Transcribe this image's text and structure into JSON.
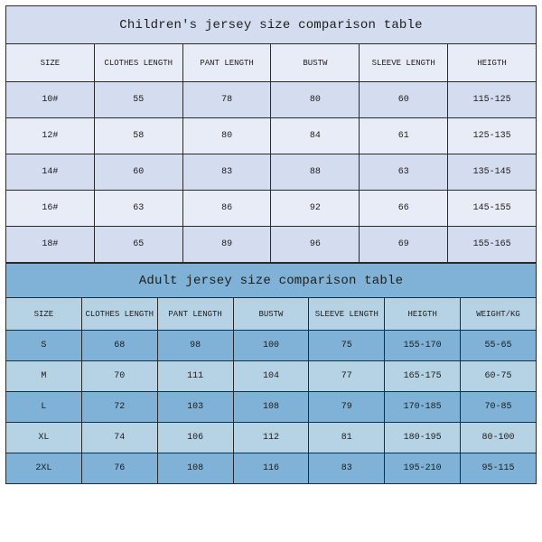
{
  "children": {
    "title": "Children's jersey size comparison table",
    "type": "table",
    "colors": {
      "title_bg": "#d4ddef",
      "header_bg": "#e8ecf6",
      "odd_row_bg": "#d4ddef",
      "even_row_bg": "#e8ecf6",
      "border": "#2a2a2a",
      "text": "#1c1c1c"
    },
    "title_fontsize": 14,
    "header_fontsize": 9,
    "cell_fontsize": 10,
    "font_family": "Courier New, monospace",
    "columns": [
      "SIZE",
      "CLOTHES LENGTH",
      "PANT LENGTH",
      "BUSTW",
      "SLEEVE LENGTH",
      "HEIGTH"
    ],
    "column_widths_pct": [
      12,
      18,
      16,
      14,
      18,
      22
    ],
    "rows": [
      [
        "10#",
        "55",
        "78",
        "80",
        "60",
        "115-125"
      ],
      [
        "12#",
        "58",
        "80",
        "84",
        "61",
        "125-135"
      ],
      [
        "14#",
        "60",
        "83",
        "88",
        "63",
        "135-145"
      ],
      [
        "16#",
        "63",
        "86",
        "92",
        "66",
        "145-155"
      ],
      [
        "18#",
        "65",
        "89",
        "96",
        "69",
        "155-165"
      ]
    ]
  },
  "adult": {
    "title": "Adult jersey size comparison table",
    "type": "table",
    "colors": {
      "title_bg": "#7fb2d6",
      "header_bg": "#b6d3e6",
      "odd_row_bg": "#7fb2d6",
      "even_row_bg": "#b6d3e6",
      "border": "#2a2a2a",
      "text": "#1c1c1c"
    },
    "title_fontsize": 14,
    "header_fontsize": 9,
    "cell_fontsize": 10,
    "font_family": "Courier New, monospace",
    "columns": [
      "SIZE",
      "CLOTHES LENGTH",
      "PANT LENGTH",
      "BUSTW",
      "SLEEVE LENGTH",
      "HEIGTH",
      "WEIGHT/KG"
    ],
    "column_widths_pct": [
      12,
      18,
      16,
      12,
      17,
      12,
      13
    ],
    "rows": [
      [
        "S",
        "68",
        "98",
        "100",
        "75",
        "155-170",
        "55-65"
      ],
      [
        "M",
        "70",
        "111",
        "104",
        "77",
        "165-175",
        "60-75"
      ],
      [
        "L",
        "72",
        "103",
        "108",
        "79",
        "170-185",
        "70-85"
      ],
      [
        "XL",
        "74",
        "106",
        "112",
        "81",
        "180-195",
        "80-100"
      ],
      [
        "2XL",
        "76",
        "108",
        "116",
        "83",
        "195-210",
        "95-115"
      ]
    ]
  }
}
